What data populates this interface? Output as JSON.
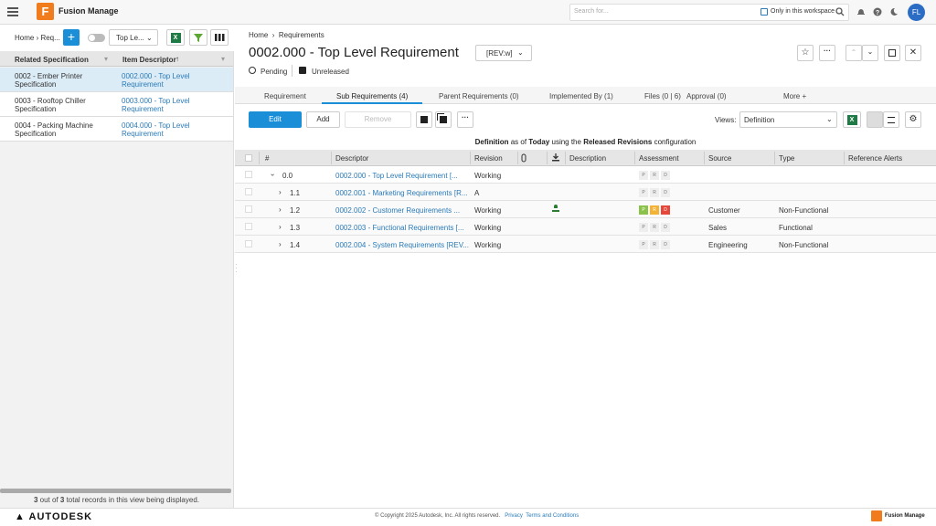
{
  "app": {
    "name": "Fusion Manage",
    "logo_letter": "F",
    "search_placeholder": "Search for...",
    "workspace_filter": "Only in this workspace",
    "user_initials": "FL"
  },
  "left_panel": {
    "breadcrumb": [
      "Home",
      "Req..."
    ],
    "view": "Top Le...",
    "columns": [
      "Related Specification",
      "Item Descriptor"
    ],
    "rows": [
      [
        "0002 - Ember Printer Specification",
        "0002.000 - Top Level Requirement"
      ],
      [
        "0003 - Rooftop Chiller Specification",
        "0003.000 - Top Level Requirement"
      ],
      [
        "0004 - Packing Machine Specification",
        "0004.000 - Top Level Requirement"
      ]
    ],
    "footer": [
      {
        "text": "3",
        "bold": true
      },
      {
        "text": " out of ",
        "bold": false
      },
      {
        "text": "3",
        "bold": true
      },
      {
        "text": " total records in this view being displayed.",
        "bold": false
      }
    ]
  },
  "item": {
    "breadcrumb": [
      "Home",
      "Requirements"
    ],
    "title": "0002.000 - Top Level Requirement",
    "revision": "[REV:w]",
    "status": "Pending",
    "release": "Unreleased"
  },
  "tabs": [
    "Requirement",
    "Sub Requirements (4)",
    "Parent Requirements (0)",
    "Implemented By (1)",
    "Files (0 | 6)",
    "Approval (0)",
    "More +"
  ],
  "active_tab": 1,
  "toolbar": {
    "edit": "Edit",
    "add": "Add",
    "remove": "Remove",
    "views_label": "Views:",
    "view": "Definition"
  },
  "config_line": [
    {
      "text": "Definition",
      "bold": true
    },
    {
      "text": " as of ",
      "bold": false
    },
    {
      "text": "Today",
      "bold": true
    },
    {
      "text": " using the ",
      "bold": false
    },
    {
      "text": "Released Revisions",
      "bold": true
    },
    {
      "text": " configuration",
      "bold": false
    }
  ],
  "grid": {
    "columns": [
      "#",
      "Descriptor",
      "Revision",
      "Description",
      "Assessment",
      "Source",
      "Type",
      "Reference Alerts"
    ],
    "rows": [
      {
        "number": "0.0",
        "descriptor": "0002.000 - Top Level Requirement [...",
        "revision": "Working",
        "assessment": [
          "P",
          "R",
          "D"
        ],
        "expanded": true
      },
      {
        "number": "1.1",
        "descriptor": "0002.001 - Marketing Requirements [R...",
        "revision": "A",
        "assessment": [
          "P",
          "R",
          "D"
        ]
      },
      {
        "number": "1.2",
        "descriptor": "0002.002 - Customer Requirements ...",
        "revision": "Working",
        "assessment": [
          "P",
          "R",
          "D"
        ],
        "assessment_colors": [
          "#8bc34a",
          "#f5b335",
          "#e5473b"
        ],
        "has_file": true,
        "source": "Customer",
        "type": "Non-Functional"
      },
      {
        "number": "1.3",
        "descriptor": "0002.003 - Functional Requirements [...",
        "revision": "Working",
        "assessment": [
          "P",
          "R",
          "D"
        ],
        "source": "Sales",
        "type": "Functional"
      },
      {
        "number": "1.4",
        "descriptor": "0002.004 - System Requirements [REV...",
        "revision": "Working",
        "assessment": [
          "P",
          "R",
          "D"
        ],
        "source": "Engineering",
        "type": "Non-Functional"
      }
    ]
  },
  "footer": {
    "logo": "AUTODESK",
    "copyright": "© Copyright 2025 Autodesk, Inc. All rights reserved.",
    "links": [
      "Privacy",
      "Terms and Conditions"
    ],
    "product": "Fusion Manage"
  }
}
